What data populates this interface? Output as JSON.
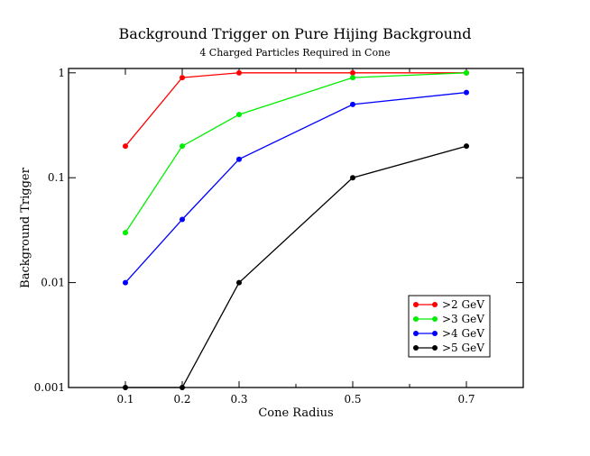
{
  "chart_data": {
    "type": "line",
    "title": "Background Trigger on Pure Hijing Background",
    "subtitle": "4 Charged Particles Required in Cone",
    "xlabel": "Cone Radius",
    "ylabel": "Background Trigger",
    "xlim": [
      0.0,
      0.8
    ],
    "ylim": [
      0.001,
      1.1
    ],
    "yscale": "log",
    "x_ticks": [
      "0.1",
      "0.2",
      "0.3",
      "0.5",
      "0.7"
    ],
    "x_tick_values": [
      0.1,
      0.2,
      0.3,
      0.5,
      0.7
    ],
    "y_ticks": [
      "0.001",
      "0.01",
      "0.1",
      "1"
    ],
    "y_tick_values": [
      0.001,
      0.01,
      0.1,
      1
    ],
    "legend_position": "bottom-right",
    "x": [
      0.1,
      0.2,
      0.3,
      0.5,
      0.7
    ],
    "series": [
      {
        "name": ">2 GeV",
        "color": "#ff0000",
        "values": [
          0.2,
          0.9,
          1.0,
          1.0,
          1.0
        ]
      },
      {
        "name": ">3 GeV",
        "color": "#00ee00",
        "values": [
          0.03,
          0.2,
          0.4,
          0.9,
          1.0
        ]
      },
      {
        "name": ">4 GeV",
        "color": "#0000ff",
        "values": [
          0.01,
          0.04,
          0.15,
          0.5,
          0.65
        ]
      },
      {
        "name": ">5 GeV",
        "color": "#000000",
        "values": [
          0.001,
          0.001,
          0.01,
          0.1,
          0.2
        ]
      }
    ]
  }
}
